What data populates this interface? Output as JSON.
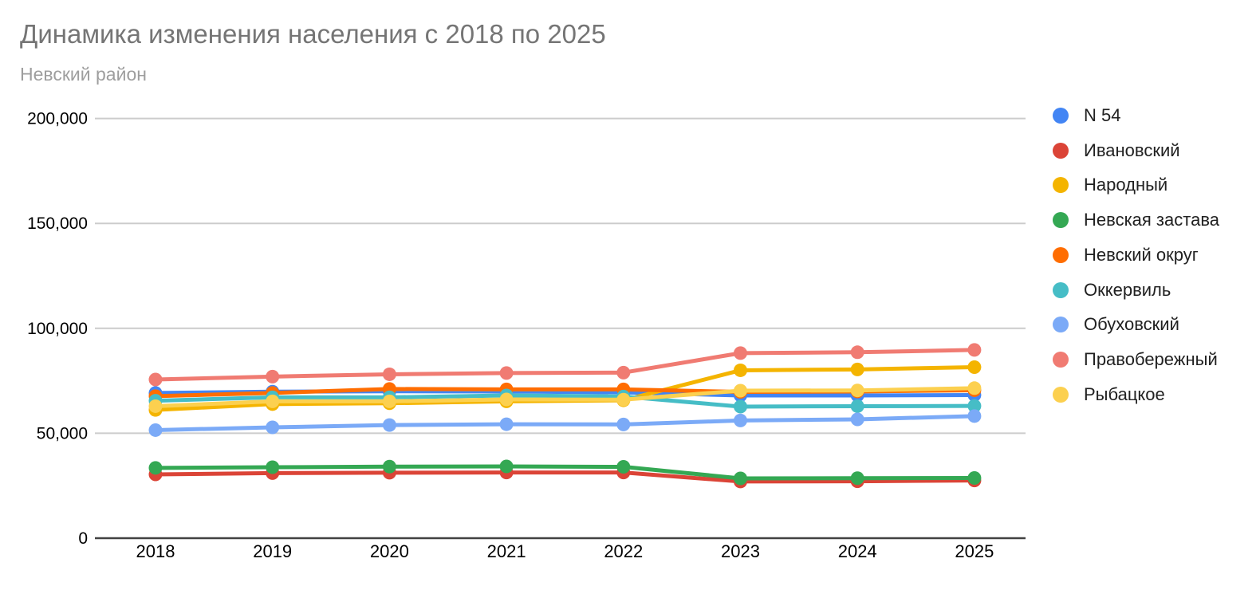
{
  "title": "Динамика изменения населения с 2018 по 2025",
  "subtitle": "Невский район",
  "chart_data": {
    "type": "line",
    "title": "Динамика изменения населения с 2018 по 2025",
    "subtitle": "Невский район",
    "x": [
      "2018",
      "2019",
      "2020",
      "2021",
      "2022",
      "2023",
      "2024",
      "2025"
    ],
    "xlabel": "",
    "ylabel": "",
    "ylim": [
      0,
      200000
    ],
    "yticks": [
      0,
      50000,
      100000,
      150000,
      200000
    ],
    "ytick_labels": [
      "0",
      "50,000",
      "100,000",
      "150,000",
      "200,000"
    ],
    "grid": true,
    "legend_position": "right",
    "marker": "circle",
    "series": [
      {
        "name": "N 54",
        "color": "#4285f4",
        "values": [
          69200,
          69800,
          70000,
          69900,
          69500,
          68000,
          68000,
          68200
        ]
      },
      {
        "name": "Ивановский",
        "color": "#db4437",
        "values": [
          30400,
          31000,
          31200,
          31300,
          31300,
          27000,
          27100,
          27500
        ]
      },
      {
        "name": "Народный",
        "color": "#f4b400",
        "values": [
          61100,
          63900,
          64300,
          65200,
          65700,
          80000,
          80400,
          81500
        ]
      },
      {
        "name": "Невская застава",
        "color": "#34a853",
        "values": [
          33500,
          33800,
          34100,
          34200,
          34000,
          28500,
          28600,
          28700
        ]
      },
      {
        "name": "Невский округ",
        "color": "#ff6d01",
        "values": [
          67700,
          69200,
          71100,
          70900,
          70900,
          69700,
          69900,
          70500
        ]
      },
      {
        "name": "Оккервиль",
        "color": "#46bdc6",
        "values": [
          65500,
          67100,
          67100,
          68000,
          67500,
          62700,
          62900,
          63000
        ]
      },
      {
        "name": "Обуховский",
        "color": "#7baaf7",
        "values": [
          51500,
          52800,
          53900,
          54300,
          54200,
          56100,
          56600,
          58200
        ]
      },
      {
        "name": "Правобережный",
        "color": "#f07b72",
        "values": [
          75600,
          77000,
          78100,
          78700,
          78900,
          88200,
          88600,
          89700
        ]
      },
      {
        "name": "Рыбацкое",
        "color": "#fcd04f",
        "values": [
          62900,
          65200,
          65200,
          66100,
          66000,
          70300,
          70400,
          71500
        ]
      }
    ],
    "axis_color": "#424242",
    "gridline_color": "#cccccc",
    "tick_label_color": "#000000"
  }
}
